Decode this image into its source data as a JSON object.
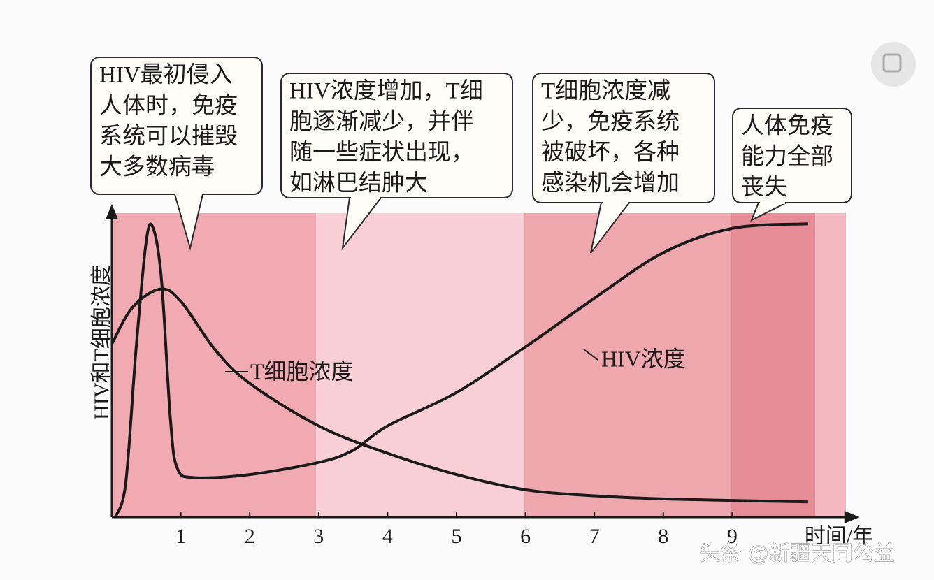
{
  "chart_data": {
    "type": "line",
    "x_label": "时间/年",
    "y_label": "HIV和T细胞浓度",
    "xlim": [
      0,
      10.85
    ],
    "xticks": [
      1,
      2,
      3,
      4,
      5,
      6,
      7,
      8,
      9
    ],
    "ylim": [
      0,
      100
    ],
    "series": [
      {
        "name": "HIV浓度",
        "color": "#1a1a1a",
        "x": [
          0.05,
          0.2,
          0.35,
          0.5,
          0.6,
          0.72,
          0.85,
          0.95,
          1.2,
          2,
          3,
          3.5,
          4,
          5,
          6,
          7,
          8,
          9,
          10.1
        ],
        "values": [
          0,
          11,
          55,
          91,
          95,
          78,
          32,
          16,
          13,
          14,
          18,
          22,
          30,
          41,
          56,
          72,
          87,
          95,
          96.5
        ]
      },
      {
        "name": "T细胞浓度",
        "color": "#1a1a1a",
        "x": [
          0,
          0.3,
          0.7,
          1,
          1.5,
          2,
          3,
          4,
          5,
          6,
          7,
          8,
          9,
          10.1
        ],
        "values": [
          57,
          69,
          75,
          71,
          55,
          44,
          30,
          21,
          14,
          9,
          7,
          6,
          5.5,
          5
        ]
      }
    ]
  },
  "callouts": [
    {
      "lines": [
        "HIV最初侵入",
        "人体时，免疫",
        "系统可以摧毁",
        "大多数病毒"
      ]
    },
    {
      "lines": [
        "HIV浓度增加，T细",
        "胞逐渐减少，并伴",
        "随一些症状出现，",
        "如淋巴结肿大"
      ]
    },
    {
      "lines": [
        "T细胞浓度减",
        "少，免疫系统",
        "被破坏，各种",
        "感染机会增加"
      ]
    },
    {
      "lines": [
        "人体免疫",
        "能力全部",
        "丧失"
      ]
    }
  ],
  "watermark": "头条 @新疆天同公益"
}
